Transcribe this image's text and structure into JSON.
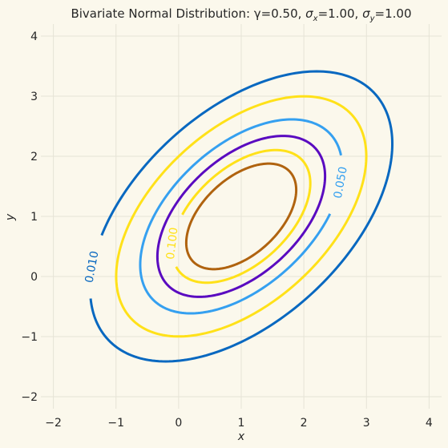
{
  "chart_data": {
    "type": "contour",
    "title": "Bivariate Normal Distribution: γ=0.50, σx=1.00, σy=1.00",
    "title_parts": {
      "prefix": "Bivariate Normal Distribution: γ=0.50, ",
      "sx_sym": "σ",
      "sx_sub": "x",
      "sx_val": "=1.00, ",
      "sy_sym": "σ",
      "sy_sub": "y",
      "sy_val": "=1.00"
    },
    "xlabel": "x",
    "ylabel": "y",
    "xlim": [
      -2.2,
      4.2
    ],
    "ylim": [
      -2.2,
      4.2
    ],
    "xticks": [
      -2,
      -1,
      0,
      1,
      2,
      3,
      4
    ],
    "yticks": [
      -2,
      -1,
      0,
      1,
      2,
      3,
      4
    ],
    "tick_labels": [
      "−2",
      "−1",
      "0",
      "1",
      "2",
      "3",
      "4"
    ],
    "grid": true,
    "distribution": {
      "mean_x": 1.0,
      "mean_y": 1.0,
      "sigma_x": 1.0,
      "sigma_y": 1.0,
      "rho": 0.5
    },
    "contour_levels": [
      {
        "level": 0.01,
        "color": "#0868c0",
        "label": "0.010",
        "labeled": true
      },
      {
        "level": 0.025,
        "color": "#ffe119",
        "labeled": false
      },
      {
        "level": 0.05,
        "color": "#35a0f0",
        "label": "0.050",
        "labeled": true
      },
      {
        "level": 0.075,
        "color": "#5a0bc0",
        "labeled": false
      },
      {
        "level": 0.1,
        "color": "#ffe119",
        "label": "0.100",
        "labeled": true
      },
      {
        "level": 0.125,
        "color": "#b0630f",
        "labeled": false
      }
    ]
  },
  "colors": {
    "background": "#fbf8ec",
    "grid": "#e6e3d6",
    "text": "#262626"
  }
}
